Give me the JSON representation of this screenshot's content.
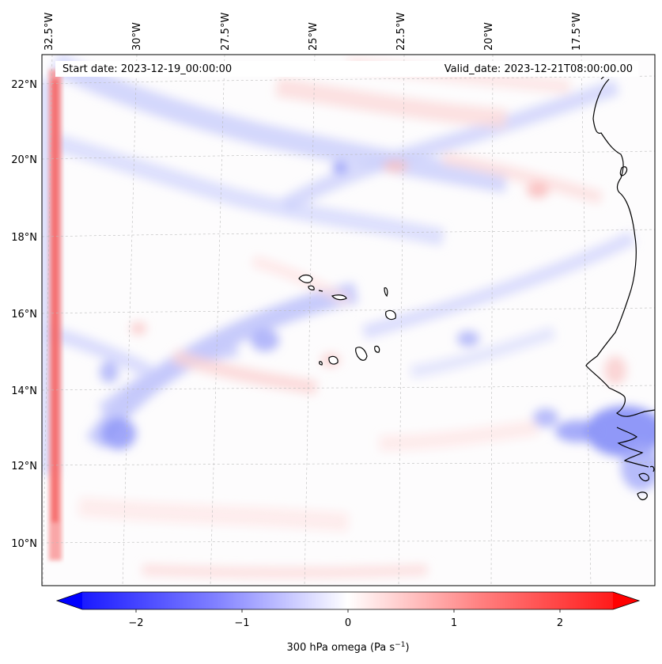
{
  "header": {
    "start_date": "Start date: 2023-12-19_00:00:00",
    "valid_date": "Valid_date: 2023-12-21T08:00:00.00"
  },
  "axes": {
    "longitude_labels": [
      "32.5°W",
      "30°W",
      "27.5°W",
      "25°W",
      "22.5°W",
      "20°W",
      "17.5°W"
    ],
    "latitude_labels": [
      "22°N",
      "20°N",
      "18°N",
      "16°N",
      "14°N",
      "12°N",
      "10°N"
    ]
  },
  "colorbar": {
    "label": "300 hPa omega (Pa s",
    "label_exp": "−1",
    "label_end": ")",
    "ticks": [
      "−2",
      "−1",
      "0",
      "1",
      "2"
    ],
    "min_color": "#0000ff",
    "mid_color": "#ffffff",
    "max_color": "#ff0000"
  },
  "colors": {
    "coast": "#000000",
    "grid": "#bbbbbb"
  }
}
